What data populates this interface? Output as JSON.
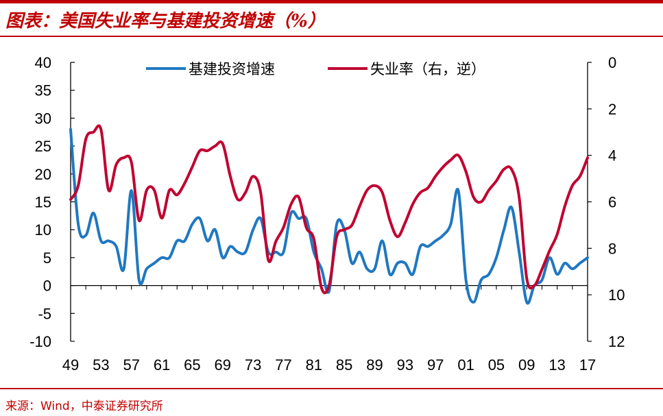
{
  "header": {
    "title": "图表：美国失业率与基建投资增速（%）"
  },
  "footer": {
    "source": "来源：Wind，中泰证券研究所"
  },
  "chart_data": {
    "type": "line",
    "x_tick_labels": [
      "49",
      "53",
      "57",
      "61",
      "65",
      "69",
      "73",
      "77",
      "81",
      "85",
      "89",
      "93",
      "97",
      "01",
      "05",
      "09",
      "13",
      "17"
    ],
    "x_range": [
      1949,
      2017
    ],
    "y_left": {
      "range": [
        -10,
        40
      ],
      "ticks": [
        -10,
        -5,
        0,
        5,
        10,
        15,
        20,
        25,
        30,
        35,
        40
      ]
    },
    "y_right": {
      "range": [
        0,
        12
      ],
      "ticks": [
        0,
        2,
        4,
        6,
        8,
        10,
        12
      ],
      "inverted": true
    },
    "legend_position": "top",
    "series": [
      {
        "name": "基建投资增速",
        "axis": "left",
        "color": "#1f78c1",
        "x": [
          1949,
          1950,
          1951,
          1952,
          1953,
          1954,
          1955,
          1956,
          1957,
          1958,
          1959,
          1960,
          1961,
          1962,
          1963,
          1964,
          1965,
          1966,
          1967,
          1968,
          1969,
          1970,
          1971,
          1972,
          1973,
          1974,
          1975,
          1976,
          1977,
          1978,
          1979,
          1980,
          1981,
          1982,
          1983,
          1984,
          1985,
          1986,
          1987,
          1988,
          1989,
          1990,
          1991,
          1992,
          1993,
          1994,
          1995,
          1996,
          1997,
          1998,
          1999,
          2000,
          2001,
          2002,
          2003,
          2004,
          2005,
          2006,
          2007,
          2008,
          2009,
          2010,
          2011,
          2012,
          2013,
          2014,
          2015,
          2016,
          2017
        ],
        "values": [
          28,
          11,
          9,
          13,
          8,
          8,
          7,
          3,
          17,
          1,
          3,
          4,
          5,
          5,
          8,
          8,
          11,
          12,
          8,
          10,
          5,
          7,
          6,
          6,
          10,
          12,
          6,
          6,
          6,
          13,
          12,
          12,
          6,
          3,
          -1,
          11,
          10,
          4,
          6,
          3,
          3,
          8,
          2,
          4,
          4,
          2,
          7,
          7,
          8,
          9,
          11,
          17,
          1,
          -3,
          1,
          2,
          5,
          10,
          14,
          6,
          -3,
          0,
          1,
          5,
          2,
          4,
          3,
          4,
          5
        ]
      },
      {
        "name": "失业率（右，逆）",
        "axis": "right",
        "color": "#c00030",
        "x": [
          1949,
          1950,
          1951,
          1952,
          1953,
          1954,
          1955,
          1956,
          1957,
          1958,
          1959,
          1960,
          1961,
          1962,
          1963,
          1964,
          1965,
          1966,
          1967,
          1968,
          1969,
          1970,
          1971,
          1972,
          1973,
          1974,
          1975,
          1976,
          1977,
          1978,
          1979,
          1980,
          1981,
          1982,
          1983,
          1984,
          1985,
          1986,
          1987,
          1988,
          1989,
          1990,
          1991,
          1992,
          1993,
          1994,
          1995,
          1996,
          1997,
          1998,
          1999,
          2000,
          2001,
          2002,
          2003,
          2004,
          2005,
          2006,
          2007,
          2008,
          2009,
          2010,
          2011,
          2012,
          2013,
          2014,
          2015,
          2016,
          2017
        ],
        "values": [
          5.9,
          5.3,
          3.3,
          3.0,
          2.9,
          5.5,
          4.4,
          4.1,
          4.3,
          6.8,
          5.5,
          5.5,
          6.7,
          5.5,
          5.7,
          5.2,
          4.5,
          3.8,
          3.8,
          3.6,
          3.5,
          4.9,
          5.9,
          5.6,
          4.9,
          5.6,
          8.5,
          7.7,
          7.1,
          6.1,
          5.8,
          7.1,
          7.6,
          9.7,
          9.6,
          7.5,
          7.2,
          7.0,
          6.2,
          5.5,
          5.3,
          5.6,
          6.8,
          7.5,
          6.9,
          6.1,
          5.6,
          5.4,
          4.9,
          4.5,
          4.2,
          4.0,
          4.7,
          5.8,
          6.0,
          5.5,
          5.1,
          4.6,
          4.6,
          5.8,
          9.3,
          9.6,
          8.9,
          8.1,
          7.4,
          6.2,
          5.3,
          4.9,
          4.1
        ]
      }
    ]
  }
}
